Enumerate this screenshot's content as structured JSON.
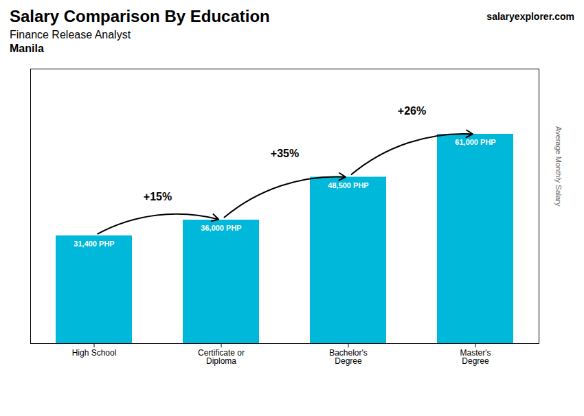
{
  "chart_data": {
    "type": "bar",
    "title": "Salary Comparison By Education",
    "subtitle": "Finance Release Analyst",
    "ylabel": "Average Monthly Salary",
    "categories": [
      "High School",
      "Certificate or\nDiploma",
      "Bachelor's\nDegree",
      "Master's\nDegree"
    ],
    "values": [
      31400,
      36000,
      48500,
      61000
    ],
    "value_labels": [
      "31,400 PHP",
      "36,000 PHP",
      "48,500 PHP",
      "61,000 PHP"
    ],
    "data_labels": true,
    "color": "#00b8d9",
    "ylim": [
      0,
      80000
    ],
    "tick_labels": "x",
    "annotations": [
      {
        "text": "+15%",
        "from": "High School",
        "to": "Certificate or\nDiploma"
      },
      {
        "text": "+35%",
        "from": "Certificate or\nDiploma",
        "to": "Bachelor's\nDegree"
      },
      {
        "text": "+26%",
        "from": "Bachelor's\nDegree",
        "to": "Master's\nDegree"
      },
      {
        "text": "Manila"
      },
      {
        "text": "salaryexplorer.com"
      }
    ]
  }
}
